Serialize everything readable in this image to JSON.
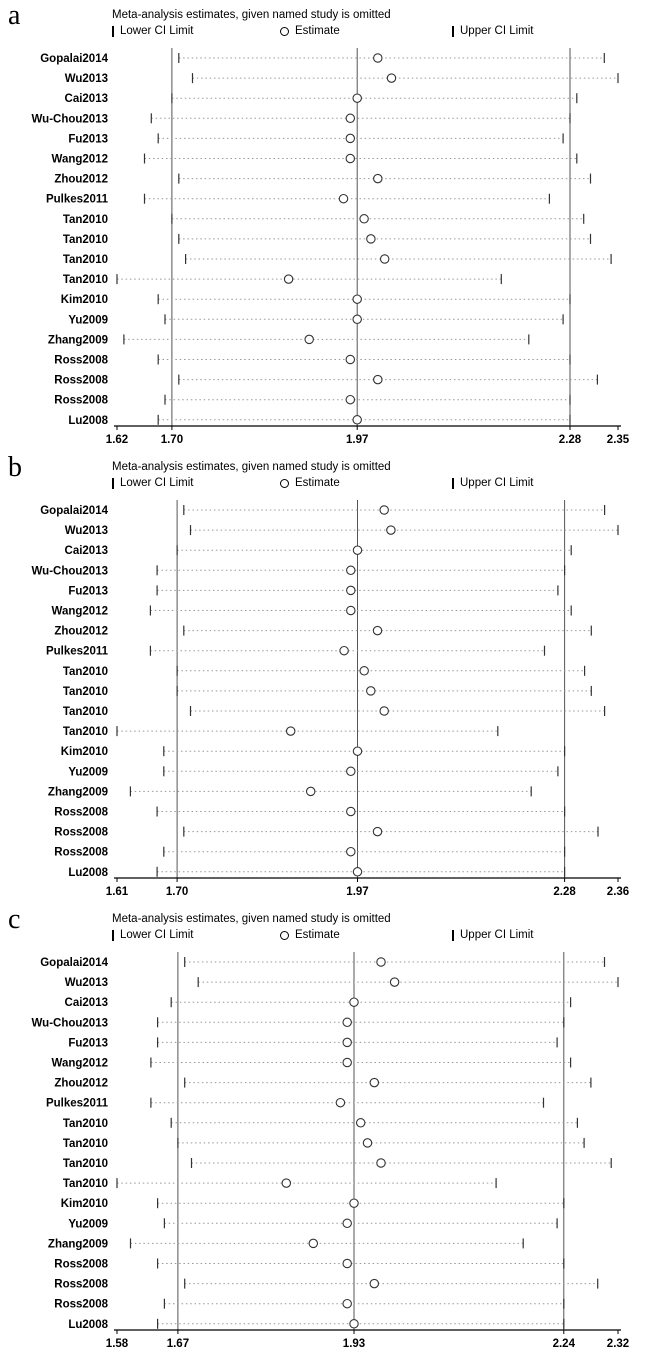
{
  "colors": {
    "background": "#ffffff",
    "text": "#000000",
    "ref_line": "#555555",
    "ci_dotted": "#999999",
    "marker_stroke": "#333333"
  },
  "chart_data": [
    {
      "type": "scatter",
      "variant": "forest-sensitivity",
      "label": "a",
      "title": "Meta-analysis estimates, given named study is omitted",
      "legend": {
        "lower": "Lower CI Limit",
        "estimate": "Estimate",
        "upper": "Upper CI Limit"
      },
      "axis": {
        "min": 1.62,
        "max": 2.35,
        "ticks": [
          1.62,
          1.7,
          1.97,
          2.28,
          2.35
        ],
        "tick_labels": [
          "1.62",
          "1.70",
          "1.97",
          "2.28",
          "2.35"
        ],
        "ref_lines": [
          1.7,
          1.97,
          2.28
        ]
      },
      "studies": [
        {
          "name": "Gopalai2014",
          "lower": 1.71,
          "estimate": 2.0,
          "upper": 2.33
        },
        {
          "name": "Wu2013",
          "lower": 1.73,
          "estimate": 2.02,
          "upper": 2.35
        },
        {
          "name": "Cai2013",
          "lower": 1.7,
          "estimate": 1.97,
          "upper": 2.29
        },
        {
          "name": "Wu-Chou2013",
          "lower": 1.67,
          "estimate": 1.96,
          "upper": 2.28
        },
        {
          "name": "Fu2013",
          "lower": 1.68,
          "estimate": 1.96,
          "upper": 2.27
        },
        {
          "name": "Wang2012",
          "lower": 1.66,
          "estimate": 1.96,
          "upper": 2.29
        },
        {
          "name": "Zhou2012",
          "lower": 1.71,
          "estimate": 2.0,
          "upper": 2.31
        },
        {
          "name": "Pulkes2011",
          "lower": 1.66,
          "estimate": 1.95,
          "upper": 2.25
        },
        {
          "name": "Tan2010",
          "lower": 1.7,
          "estimate": 1.98,
          "upper": 2.3
        },
        {
          "name": "Tan2010",
          "lower": 1.71,
          "estimate": 1.99,
          "upper": 2.31
        },
        {
          "name": "Tan2010",
          "lower": 1.72,
          "estimate": 2.01,
          "upper": 2.34
        },
        {
          "name": "Tan2010",
          "lower": 1.62,
          "estimate": 1.87,
          "upper": 2.18
        },
        {
          "name": "Kim2010",
          "lower": 1.68,
          "estimate": 1.97,
          "upper": 2.28
        },
        {
          "name": "Yu2009",
          "lower": 1.69,
          "estimate": 1.97,
          "upper": 2.27
        },
        {
          "name": "Zhang2009",
          "lower": 1.63,
          "estimate": 1.9,
          "upper": 2.22
        },
        {
          "name": "Ross2008",
          "lower": 1.68,
          "estimate": 1.96,
          "upper": 2.28
        },
        {
          "name": "Ross2008",
          "lower": 1.71,
          "estimate": 2.0,
          "upper": 2.32
        },
        {
          "name": "Ross2008",
          "lower": 1.69,
          "estimate": 1.96,
          "upper": 2.28
        },
        {
          "name": "Lu2008",
          "lower": 1.68,
          "estimate": 1.97,
          "upper": 2.28
        }
      ]
    },
    {
      "type": "scatter",
      "variant": "forest-sensitivity",
      "label": "b",
      "title": "Meta-analysis estimates, given named study is omitted",
      "legend": {
        "lower": "Lower CI Limit",
        "estimate": "Estimate",
        "upper": "Upper CI Limit"
      },
      "axis": {
        "min": 1.61,
        "max": 2.36,
        "ticks": [
          1.61,
          1.7,
          1.97,
          2.28,
          2.36
        ],
        "tick_labels": [
          "1.61",
          "1.70",
          "1.97",
          "2.28",
          "2.36"
        ],
        "ref_lines": [
          1.7,
          1.97,
          2.28
        ]
      },
      "studies": [
        {
          "name": "Gopalai2014",
          "lower": 1.71,
          "estimate": 2.01,
          "upper": 2.34
        },
        {
          "name": "Wu2013",
          "lower": 1.72,
          "estimate": 2.02,
          "upper": 2.36
        },
        {
          "name": "Cai2013",
          "lower": 1.7,
          "estimate": 1.97,
          "upper": 2.29
        },
        {
          "name": "Wu-Chou2013",
          "lower": 1.67,
          "estimate": 1.96,
          "upper": 2.28
        },
        {
          "name": "Fu2013",
          "lower": 1.67,
          "estimate": 1.96,
          "upper": 2.27
        },
        {
          "name": "Wang2012",
          "lower": 1.66,
          "estimate": 1.96,
          "upper": 2.29
        },
        {
          "name": "Zhou2012",
          "lower": 1.71,
          "estimate": 2.0,
          "upper": 2.32
        },
        {
          "name": "Pulkes2011",
          "lower": 1.66,
          "estimate": 1.95,
          "upper": 2.25
        },
        {
          "name": "Tan2010",
          "lower": 1.7,
          "estimate": 1.98,
          "upper": 2.31
        },
        {
          "name": "Tan2010",
          "lower": 1.7,
          "estimate": 1.99,
          "upper": 2.32
        },
        {
          "name": "Tan2010",
          "lower": 1.72,
          "estimate": 2.01,
          "upper": 2.34
        },
        {
          "name": "Tan2010",
          "lower": 1.61,
          "estimate": 1.87,
          "upper": 2.18
        },
        {
          "name": "Kim2010",
          "lower": 1.68,
          "estimate": 1.97,
          "upper": 2.28
        },
        {
          "name": "Yu2009",
          "lower": 1.68,
          "estimate": 1.96,
          "upper": 2.27
        },
        {
          "name": "Zhang2009",
          "lower": 1.63,
          "estimate": 1.9,
          "upper": 2.23
        },
        {
          "name": "Ross2008",
          "lower": 1.67,
          "estimate": 1.96,
          "upper": 2.28
        },
        {
          "name": "Ross2008",
          "lower": 1.71,
          "estimate": 2.0,
          "upper": 2.33
        },
        {
          "name": "Ross2008",
          "lower": 1.68,
          "estimate": 1.96,
          "upper": 2.28
        },
        {
          "name": "Lu2008",
          "lower": 1.67,
          "estimate": 1.97,
          "upper": 2.28
        }
      ]
    },
    {
      "type": "scatter",
      "variant": "forest-sensitivity",
      "label": "c",
      "title": "Meta-analysis estimates, given named study is omitted",
      "legend": {
        "lower": "Lower CI Limit",
        "estimate": "Estimate",
        "upper": "Upper CI Limit"
      },
      "axis": {
        "min": 1.58,
        "max": 2.32,
        "ticks": [
          1.58,
          1.67,
          1.93,
          2.24,
          2.32
        ],
        "tick_labels": [
          "1.58",
          "1.67",
          "1.93",
          "2.24",
          "2.32"
        ],
        "ref_lines": [
          1.67,
          1.93,
          2.24
        ]
      },
      "studies": [
        {
          "name": "Gopalai2014",
          "lower": 1.68,
          "estimate": 1.97,
          "upper": 2.3
        },
        {
          "name": "Wu2013",
          "lower": 1.7,
          "estimate": 1.99,
          "upper": 2.32
        },
        {
          "name": "Cai2013",
          "lower": 1.66,
          "estimate": 1.93,
          "upper": 2.25
        },
        {
          "name": "Wu-Chou2013",
          "lower": 1.64,
          "estimate": 1.92,
          "upper": 2.24
        },
        {
          "name": "Fu2013",
          "lower": 1.64,
          "estimate": 1.92,
          "upper": 2.23
        },
        {
          "name": "Wang2012",
          "lower": 1.63,
          "estimate": 1.92,
          "upper": 2.25
        },
        {
          "name": "Zhou2012",
          "lower": 1.68,
          "estimate": 1.96,
          "upper": 2.28
        },
        {
          "name": "Pulkes2011",
          "lower": 1.63,
          "estimate": 1.91,
          "upper": 2.21
        },
        {
          "name": "Tan2010",
          "lower": 1.66,
          "estimate": 1.94,
          "upper": 2.26
        },
        {
          "name": "Tan2010",
          "lower": 1.67,
          "estimate": 1.95,
          "upper": 2.27
        },
        {
          "name": "Tan2010",
          "lower": 1.69,
          "estimate": 1.97,
          "upper": 2.31
        },
        {
          "name": "Tan2010",
          "lower": 1.58,
          "estimate": 1.83,
          "upper": 2.14
        },
        {
          "name": "Kim2010",
          "lower": 1.64,
          "estimate": 1.93,
          "upper": 2.24
        },
        {
          "name": "Yu2009",
          "lower": 1.65,
          "estimate": 1.92,
          "upper": 2.23
        },
        {
          "name": "Zhang2009",
          "lower": 1.6,
          "estimate": 1.87,
          "upper": 2.18
        },
        {
          "name": "Ross2008",
          "lower": 1.64,
          "estimate": 1.92,
          "upper": 2.24
        },
        {
          "name": "Ross2008",
          "lower": 1.68,
          "estimate": 1.96,
          "upper": 2.29
        },
        {
          "name": "Ross2008",
          "lower": 1.65,
          "estimate": 1.92,
          "upper": 2.24
        },
        {
          "name": "Lu2008",
          "lower": 1.64,
          "estimate": 1.93,
          "upper": 2.24
        }
      ]
    }
  ]
}
